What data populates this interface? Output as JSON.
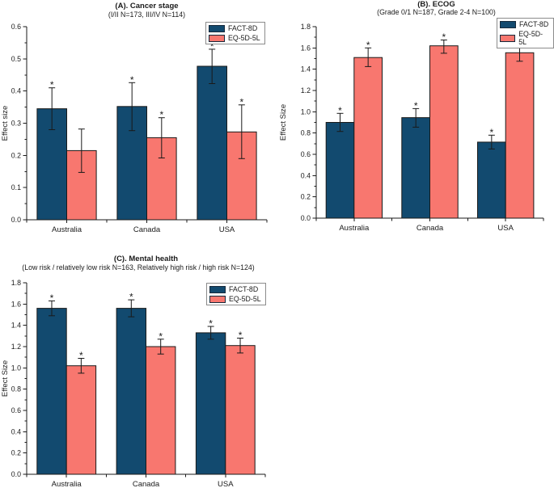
{
  "figure": {
    "background": "#ffffff",
    "text_color": "#1a1a1a",
    "axis_color": "#1a1a1a",
    "legend_border_color": "#8c8c8c",
    "significance_marker": "*"
  },
  "chart_data": [
    {
      "type": "bar",
      "panel_label": "A",
      "title": "(A). Cancer stage",
      "subtitle": "(I/II  N=173, III/IV  N=114)",
      "xlabel": "",
      "ylabel": "Effect size",
      "categories": [
        "Australia",
        "Canada",
        "USA"
      ],
      "series": [
        {
          "name": "FACT-8D",
          "color": "#124a6f",
          "values": [
            0.345,
            0.352,
            0.477
          ],
          "err_low": [
            0.28,
            0.277,
            0.423
          ],
          "err_high": [
            0.41,
            0.426,
            0.53
          ],
          "significant": [
            true,
            true,
            true
          ]
        },
        {
          "name": "EQ-5D-5L",
          "color": "#f8776f",
          "values": [
            0.215,
            0.255,
            0.273
          ],
          "err_low": [
            0.147,
            0.192,
            0.19
          ],
          "err_high": [
            0.282,
            0.317,
            0.357
          ],
          "significant": [
            false,
            true,
            true
          ]
        }
      ],
      "ylim": [
        0,
        0.6
      ],
      "ytick_step": 0.1,
      "grid": false,
      "legend_position": "top-right",
      "significance_marker": "*"
    },
    {
      "type": "bar",
      "panel_label": "B",
      "title": "(B). ECOG",
      "subtitle": "(Grade 0/1  N=187, Grade 2-4  N=100)",
      "xlabel": "",
      "ylabel": "Effect Size",
      "categories": [
        "Australia",
        "Canada",
        "USA"
      ],
      "series": [
        {
          "name": "FACT-8D",
          "color": "#124a6f",
          "values": [
            0.9,
            0.945,
            0.715
          ],
          "err_low": [
            0.815,
            0.855,
            0.65
          ],
          "err_high": [
            0.985,
            1.03,
            0.78
          ],
          "significant": [
            true,
            true,
            true
          ]
        },
        {
          "name": "EQ-5D-5L",
          "color": "#f8776f",
          "values": [
            1.51,
            1.62,
            1.555
          ],
          "err_low": [
            1.425,
            1.55,
            1.475
          ],
          "err_high": [
            1.6,
            1.675,
            1.64
          ],
          "significant": [
            true,
            true,
            true
          ]
        }
      ],
      "ylim": [
        0,
        1.8
      ],
      "ytick_step": 0.2,
      "grid": false,
      "legend_position": "top-right",
      "significance_marker": "*"
    },
    {
      "type": "bar",
      "panel_label": "C",
      "title": "(C). Mental health",
      "subtitle": "(Low risk / relatively low risk  N=163, Relatively high risk / high risk  N=124)",
      "xlabel": "",
      "ylabel": "Effect Size",
      "categories": [
        "Australia",
        "Canada",
        "USA"
      ],
      "series": [
        {
          "name": "FACT-8D",
          "color": "#124a6f",
          "values": [
            1.56,
            1.56,
            1.33
          ],
          "err_low": [
            1.49,
            1.48,
            1.27
          ],
          "err_high": [
            1.63,
            1.64,
            1.39
          ],
          "significant": [
            true,
            true,
            true
          ]
        },
        {
          "name": "EQ-5D-5L",
          "color": "#f8776f",
          "values": [
            1.02,
            1.2,
            1.21
          ],
          "err_low": [
            0.95,
            1.13,
            1.14
          ],
          "err_high": [
            1.09,
            1.27,
            1.28
          ],
          "significant": [
            true,
            true,
            true
          ]
        }
      ],
      "ylim": [
        0,
        1.8
      ],
      "ytick_step": 0.2,
      "grid": false,
      "legend_position": "top-right",
      "significance_marker": "*"
    }
  ]
}
